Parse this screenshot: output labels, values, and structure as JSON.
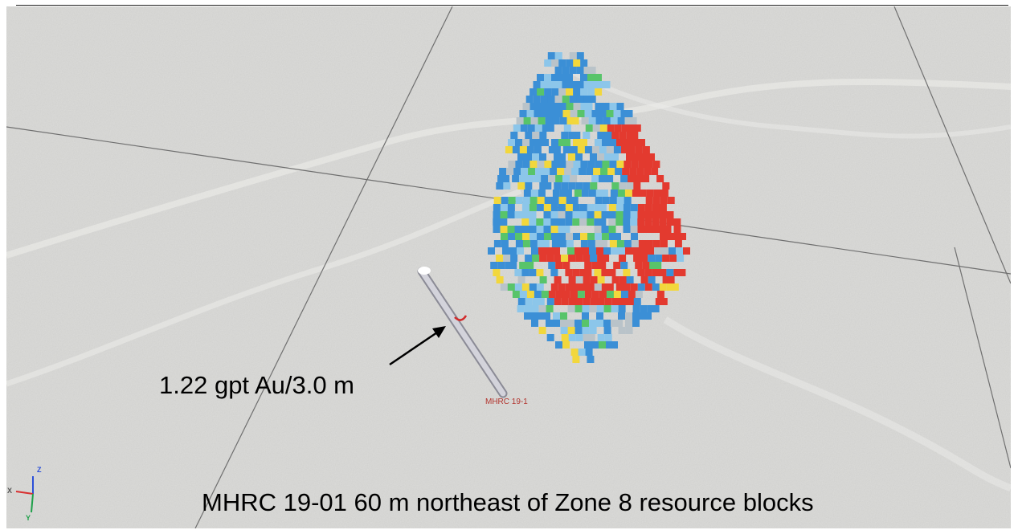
{
  "scene": {
    "annotation_text": "1.22 gpt Au/3.0 m",
    "drillhole_label": "MHRC 19-1",
    "caption": "MHRC 19-01 60 m northeast of Zone 8 resource blocks"
  },
  "axes": {
    "x_label": "X",
    "y_label": "Y",
    "z_label": "Z"
  },
  "colors": {
    "ground": "#d9d9d7",
    "grid_line": "#6f6f6f",
    "block_red": "#e33a2f",
    "block_blue": "#3b8fd6",
    "block_light_blue": "#8cc6ea",
    "block_green": "#58c46a",
    "block_yellow": "#f2d73c",
    "block_grey": "#b9c3c9",
    "drillhole": "#c8c8d0",
    "hole_label": "#b2352f",
    "arrow": "#000000"
  }
}
